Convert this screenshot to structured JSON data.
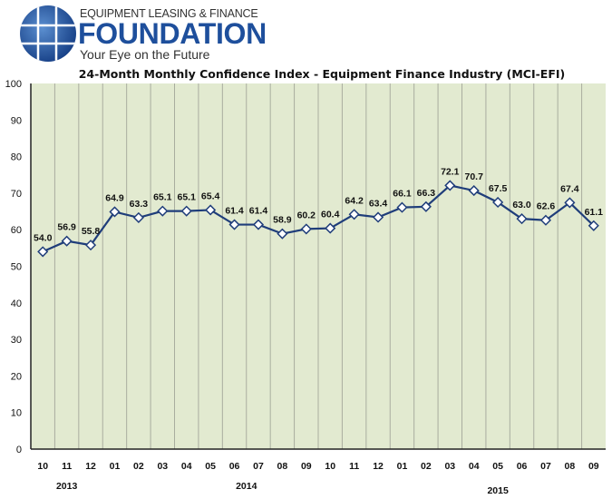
{
  "logo": {
    "top_text": "EQUIPMENT LEASING & FINANCE",
    "main_text": "FOUNDATION",
    "tagline": "Your Eye on the Future",
    "brand_color": "#1e4f9c"
  },
  "chart_data": {
    "type": "line",
    "title": "24-Month Monthly Confidence Index - Equipment Finance Industry (MCI-EFI)",
    "categories": [
      "10",
      "11",
      "12",
      "01",
      "02",
      "03",
      "04",
      "05",
      "06",
      "07",
      "08",
      "09",
      "10",
      "11",
      "12",
      "01",
      "02",
      "03",
      "04",
      "05",
      "06",
      "07",
      "08",
      "09"
    ],
    "year_labels": [
      {
        "label": "2013",
        "start_index": 0,
        "end_index": 2
      },
      {
        "label": "2014",
        "start_index": 3,
        "end_index": 14
      },
      {
        "label": "2015",
        "start_index": 15,
        "end_index": 23
      }
    ],
    "values": [
      54.0,
      56.9,
      55.8,
      64.9,
      63.3,
      65.1,
      65.1,
      65.4,
      61.4,
      61.4,
      58.9,
      60.2,
      60.4,
      64.2,
      63.4,
      66.1,
      66.3,
      72.1,
      70.7,
      67.5,
      63.0,
      62.6,
      67.4,
      61.1
    ],
    "ylim": [
      0,
      100
    ],
    "yticks": [
      0,
      10,
      20,
      30,
      40,
      50,
      60,
      70,
      80,
      90,
      100
    ],
    "grid": "vertical",
    "marker": "diamond",
    "line_color": "#1f3d7a",
    "plot_background": "#e2ead0",
    "legend": "none"
  }
}
